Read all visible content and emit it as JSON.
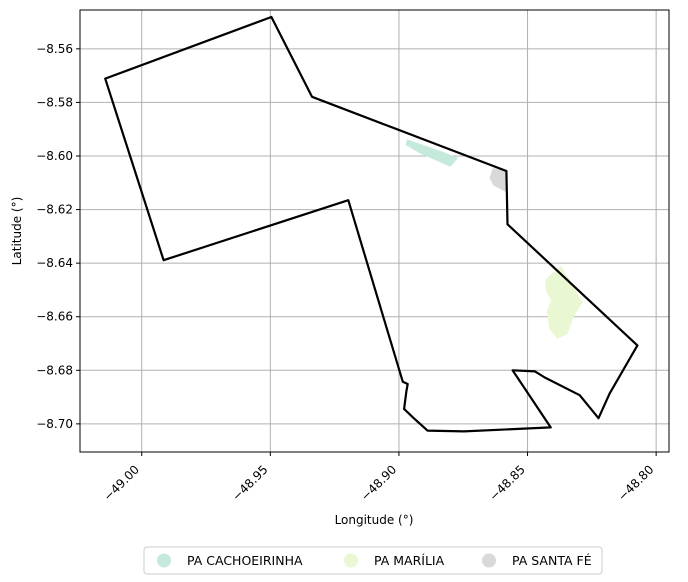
{
  "chart_data": {
    "type": "map",
    "xlabel": "Longitude (°)",
    "ylabel": "Latitude (°)",
    "xlim": [
      -49.024,
      -48.795
    ],
    "ylim": [
      -8.7105,
      -8.5455
    ],
    "x_ticks": [
      -49.0,
      -48.95,
      -48.9,
      -48.85,
      -48.8
    ],
    "x_tick_labels": [
      "−49.00",
      "−48.95",
      "−48.90",
      "−48.85",
      "−48.80"
    ],
    "y_ticks": [
      -8.56,
      -8.58,
      -8.6,
      -8.62,
      -8.64,
      -8.66,
      -8.68,
      -8.7
    ],
    "y_tick_labels": [
      "−8.56",
      "−8.58",
      "−8.60",
      "−8.62",
      "−8.64",
      "−8.66",
      "−8.68",
      "−8.70"
    ],
    "grid": true,
    "legend_position": "bottom-center",
    "boundary": {
      "color": "#000000",
      "coordinates": [
        [
          -49.0142,
          -8.5711
        ],
        [
          -48.9496,
          -8.5481
        ],
        [
          -48.9338,
          -8.5779
        ],
        [
          -48.8582,
          -8.6056
        ],
        [
          -48.8578,
          -8.6255
        ],
        [
          -48.8073,
          -8.6707
        ],
        [
          -48.8181,
          -8.6887
        ],
        [
          -48.8224,
          -8.6979
        ],
        [
          -48.8297,
          -8.6893
        ],
        [
          -48.8433,
          -8.6827
        ],
        [
          -48.8471,
          -8.6804
        ],
        [
          -48.8558,
          -8.68
        ],
        [
          -48.841,
          -8.7013
        ],
        [
          -48.8747,
          -8.7028
        ],
        [
          -48.8889,
          -8.7025
        ],
        [
          -48.8941,
          -8.698
        ],
        [
          -48.898,
          -8.6944
        ],
        [
          -48.8971,
          -8.6878
        ],
        [
          -48.8966,
          -8.6851
        ],
        [
          -48.8985,
          -8.6843
        ],
        [
          -48.9197,
          -8.6165
        ],
        [
          -48.9915,
          -8.6389
        ]
      ]
    },
    "areas": [
      {
        "name": "PA CACHOEIRINHA",
        "color": "#c5eadc",
        "polygon": [
          [
            -48.8968,
            -8.5938
          ],
          [
            -48.8835,
            -8.5982
          ],
          [
            -48.877,
            -8.6007
          ],
          [
            -48.88,
            -8.604
          ],
          [
            -48.892,
            -8.599
          ],
          [
            -48.8975,
            -8.5958
          ]
        ]
      },
      {
        "name": "PA MARÍLIA",
        "color": "#e9f7d2",
        "polygon": [
          [
            -48.837,
            -8.641
          ],
          [
            -48.8308,
            -8.651
          ],
          [
            -48.8285,
            -8.6545
          ],
          [
            -48.832,
            -8.66
          ],
          [
            -48.8345,
            -8.6665
          ],
          [
            -48.8385,
            -8.6682
          ],
          [
            -48.8415,
            -8.6645
          ],
          [
            -48.8425,
            -8.658
          ],
          [
            -48.8408,
            -8.654
          ],
          [
            -48.843,
            -8.65
          ],
          [
            -48.843,
            -8.646
          ]
        ]
      },
      {
        "name": "PA SANTA FÉ",
        "color": "#d9d9d9",
        "polygon": [
          [
            -48.8635,
            -8.6045
          ],
          [
            -48.8585,
            -8.6055
          ],
          [
            -48.8582,
            -8.6135
          ],
          [
            -48.8632,
            -8.611
          ],
          [
            -48.8648,
            -8.6082
          ]
        ]
      }
    ],
    "legend": [
      {
        "label": "PA CACHOEIRINHA",
        "color": "#c5eadc"
      },
      {
        "label": "PA MARÍLIA",
        "color": "#e9f7d2"
      },
      {
        "label": "PA SANTA FÉ",
        "color": "#d9d9d9"
      }
    ]
  }
}
